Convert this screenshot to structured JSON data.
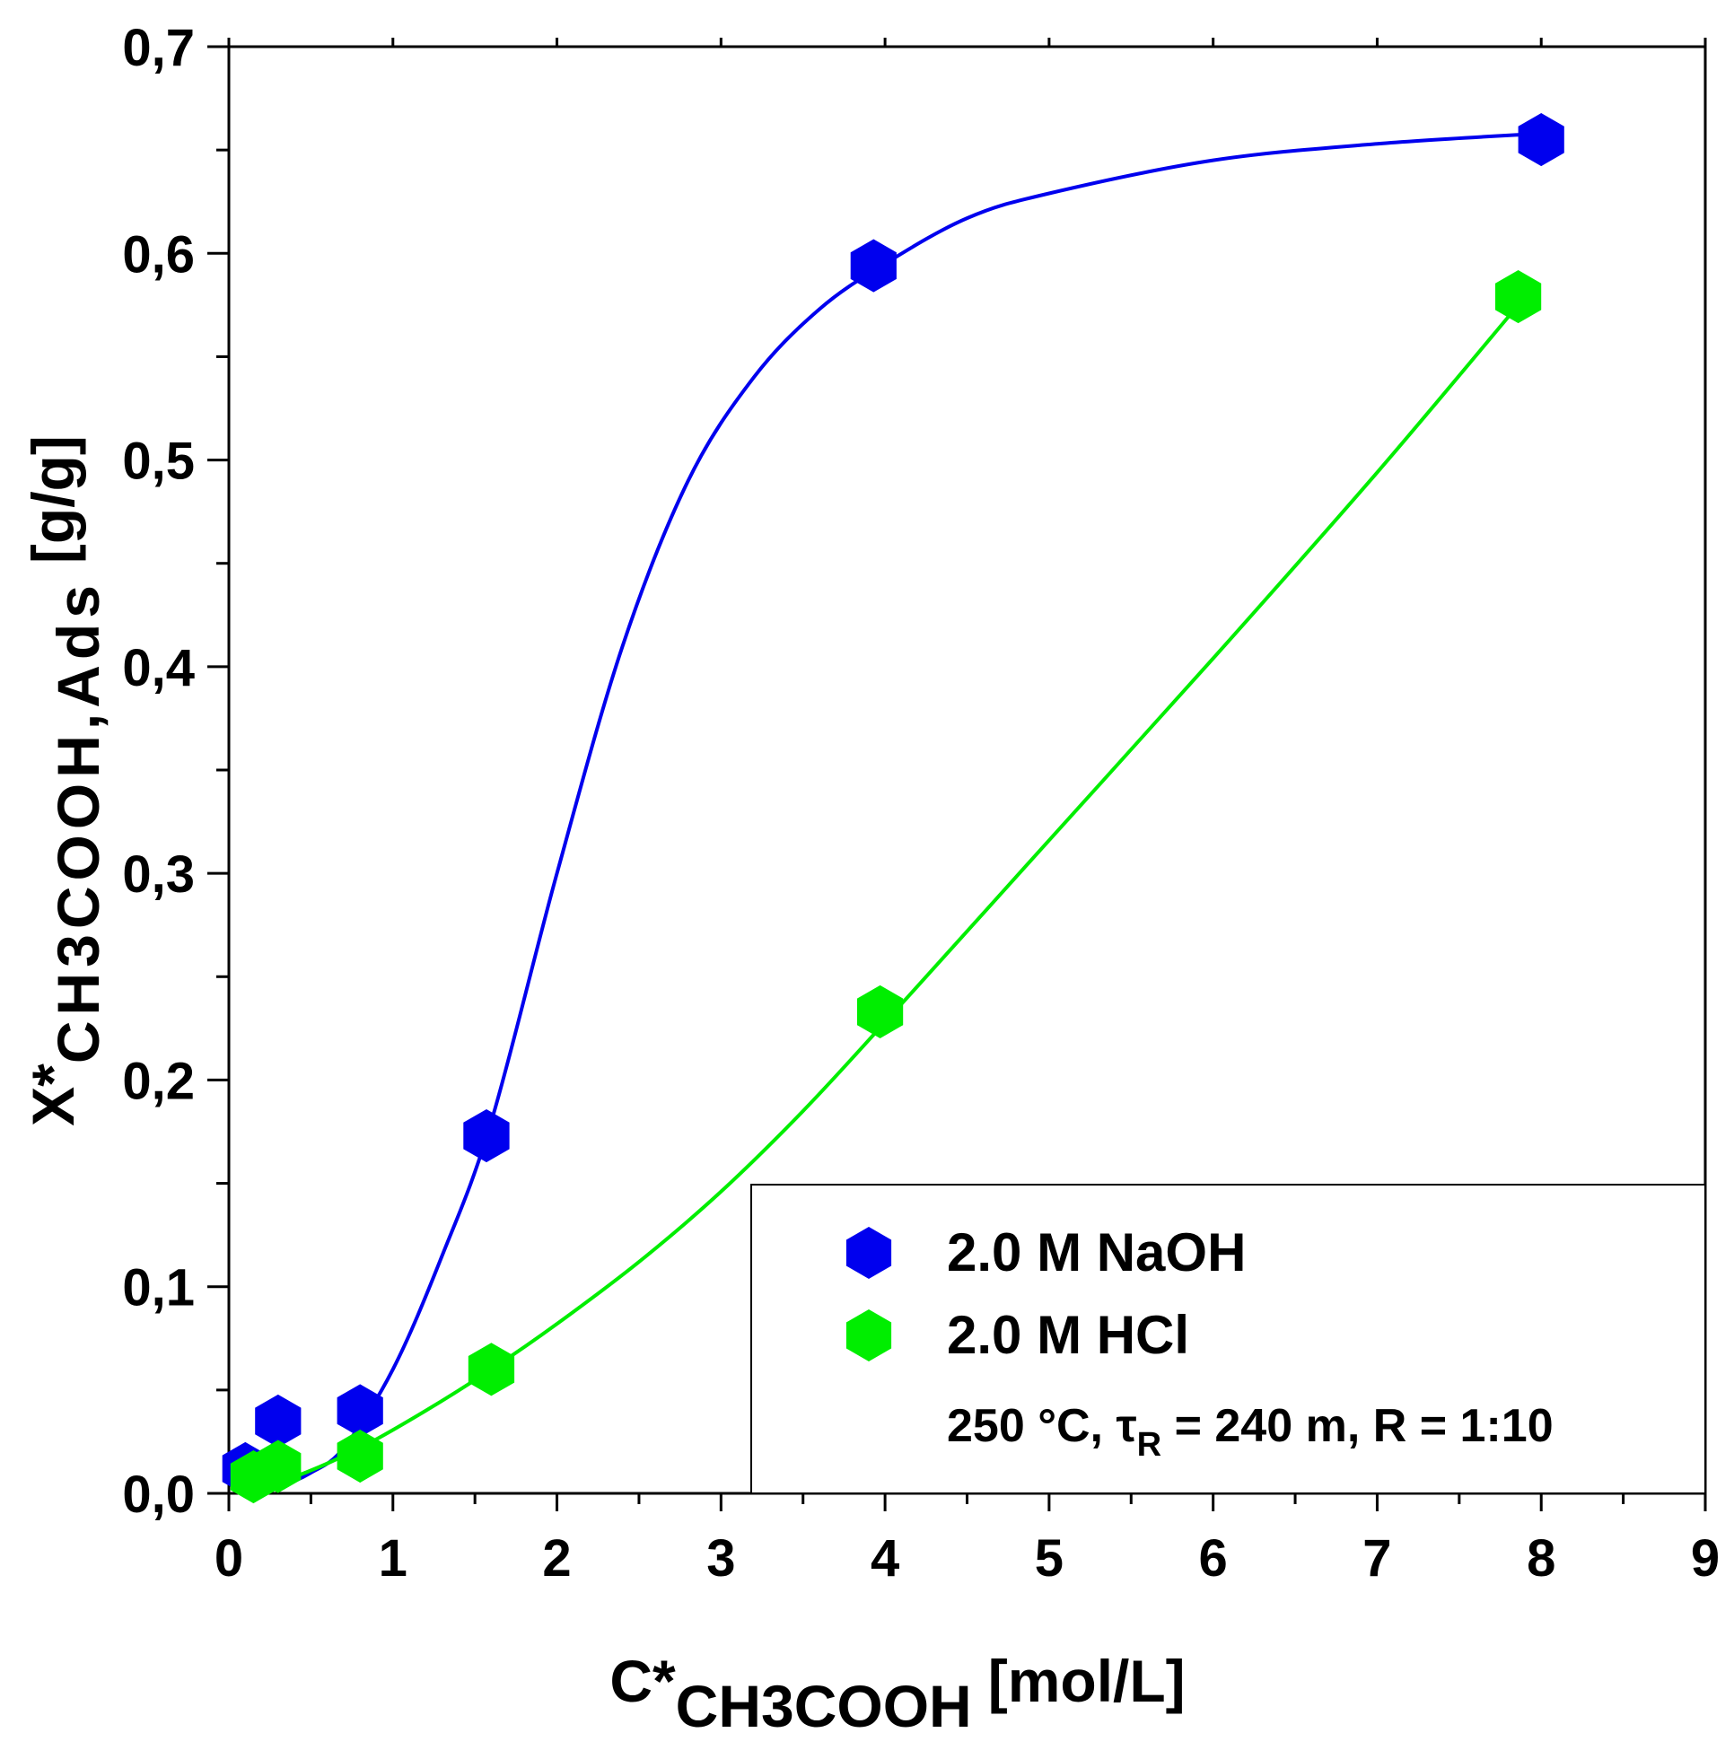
{
  "chart_data": {
    "type": "scatter",
    "title": "",
    "xlabel": {
      "main": "C*",
      "sub": "CH3COOH",
      "unit": "[mol/L]"
    },
    "ylabel": {
      "main": "X*",
      "sub": "CH3COOH,Ads",
      "unit": "[g/g]"
    },
    "xlim": [
      0,
      9
    ],
    "ylim": [
      0,
      0.7
    ],
    "x_ticks": [
      0,
      1,
      2,
      3,
      4,
      5,
      6,
      7,
      8,
      9
    ],
    "x_tick_labels": [
      "0",
      "1",
      "2",
      "3",
      "4",
      "5",
      "6",
      "7",
      "8",
      "9"
    ],
    "y_ticks": [
      0,
      0.1,
      0.2,
      0.3,
      0.4,
      0.5,
      0.6,
      0.7
    ],
    "y_tick_labels": [
      "0,0",
      "0,1",
      "0,2",
      "0,3",
      "0,4",
      "0,5",
      "0,6",
      "0,7"
    ],
    "grid": false,
    "legend_position": "bottom-right",
    "series": [
      {
        "name": "2.0 M NaOH",
        "color": "#0000ee",
        "marker": "hexagon",
        "points": [
          {
            "x": 0.1,
            "y": 0.012
          },
          {
            "x": 0.3,
            "y": 0.035
          },
          {
            "x": 0.8,
            "y": 0.04
          },
          {
            "x": 1.57,
            "y": 0.173
          },
          {
            "x": 3.93,
            "y": 0.594
          },
          {
            "x": 8.0,
            "y": 0.655
          }
        ],
        "fit": [
          {
            "x": 0.1,
            "y": 0.0
          },
          {
            "x": 0.3,
            "y": 0.003
          },
          {
            "x": 0.5,
            "y": 0.01
          },
          {
            "x": 0.7,
            "y": 0.022
          },
          {
            "x": 1.0,
            "y": 0.06
          },
          {
            "x": 1.3,
            "y": 0.115
          },
          {
            "x": 1.6,
            "y": 0.18
          },
          {
            "x": 2.0,
            "y": 0.3
          },
          {
            "x": 2.4,
            "y": 0.41
          },
          {
            "x": 2.8,
            "y": 0.49
          },
          {
            "x": 3.2,
            "y": 0.54
          },
          {
            "x": 3.6,
            "y": 0.573
          },
          {
            "x": 4.0,
            "y": 0.595
          },
          {
            "x": 4.5,
            "y": 0.617
          },
          {
            "x": 5.0,
            "y": 0.629
          },
          {
            "x": 6.0,
            "y": 0.645
          },
          {
            "x": 7.0,
            "y": 0.653
          },
          {
            "x": 8.0,
            "y": 0.658
          }
        ]
      },
      {
        "name": "2.0 M HCl",
        "color": "#00ee00",
        "marker": "hexagon",
        "points": [
          {
            "x": 0.15,
            "y": 0.008
          },
          {
            "x": 0.3,
            "y": 0.013
          },
          {
            "x": 0.8,
            "y": 0.018
          },
          {
            "x": 1.6,
            "y": 0.06
          },
          {
            "x": 3.97,
            "y": 0.233
          },
          {
            "x": 7.86,
            "y": 0.579
          }
        ],
        "fit": [
          {
            "x": 0.15,
            "y": 0.003
          },
          {
            "x": 0.4,
            "y": 0.008
          },
          {
            "x": 0.8,
            "y": 0.022
          },
          {
            "x": 1.2,
            "y": 0.04
          },
          {
            "x": 1.6,
            "y": 0.06
          },
          {
            "x": 2.0,
            "y": 0.082
          },
          {
            "x": 2.5,
            "y": 0.112
          },
          {
            "x": 3.0,
            "y": 0.146
          },
          {
            "x": 3.5,
            "y": 0.185
          },
          {
            "x": 4.0,
            "y": 0.228
          },
          {
            "x": 5.0,
            "y": 0.316
          },
          {
            "x": 6.0,
            "y": 0.404
          },
          {
            "x": 7.0,
            "y": 0.494
          },
          {
            "x": 7.86,
            "y": 0.575
          }
        ]
      }
    ],
    "annotation": {
      "prefix": "250 °C, ",
      "tau": "τ",
      "tau_sub": "R",
      "suffix": " = 240 m, R = 1:10"
    }
  }
}
